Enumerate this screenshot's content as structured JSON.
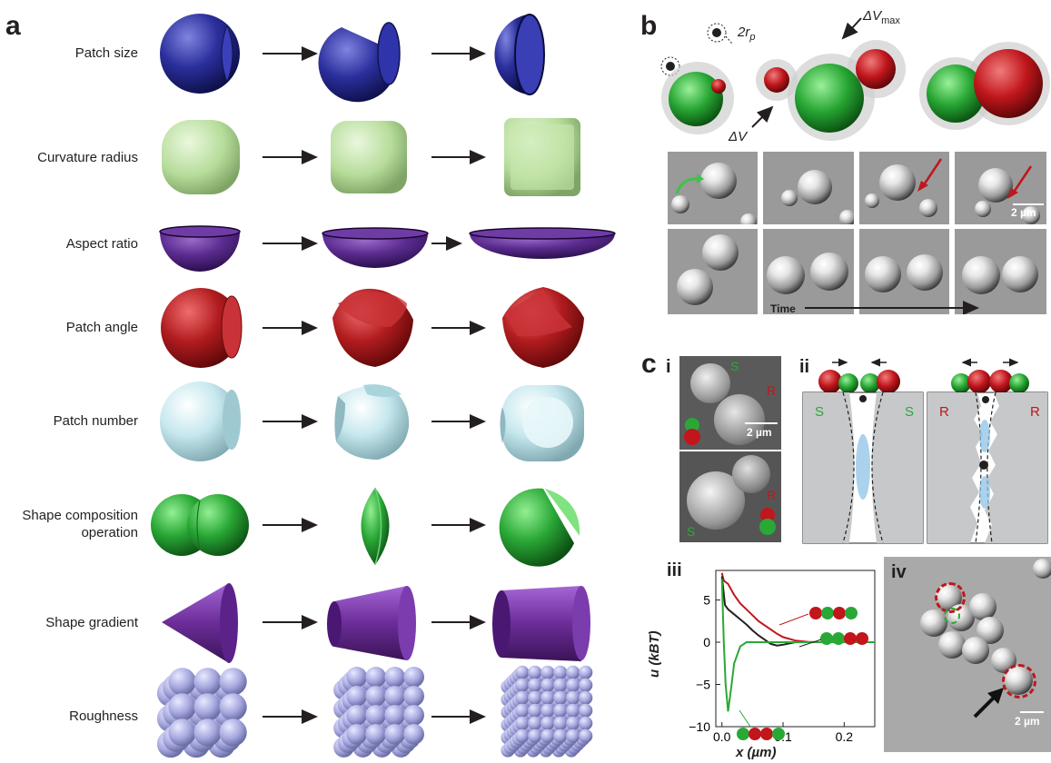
{
  "panel_a": {
    "letter": "a",
    "rows": [
      {
        "label": "Patch size"
      },
      {
        "label": "Curvature radius"
      },
      {
        "label": "Aspect ratio"
      },
      {
        "label": "Patch angle"
      },
      {
        "label": "Patch number"
      },
      {
        "label": "Shape composition operation"
      },
      {
        "label": "Shape gradient"
      },
      {
        "label": "Roughness"
      }
    ],
    "colors": {
      "patch_size": "#2b2f9c",
      "curvature": "#b6dc9a",
      "aspect": "#5a2b8f",
      "patch_angle": "#b11c1f",
      "patch_number": "#bfe3ea",
      "composition": "#2aa836",
      "gradient": "#6b2d98",
      "roughness": "#a6a8df"
    }
  },
  "panel_b": {
    "letter": "b",
    "label_2rp": "2r",
    "label_2rp_sub": "p",
    "label_dvmax": "ΔV",
    "label_dvmax_sub": "max",
    "label_dv": "ΔV",
    "scalebar": "2 µm",
    "time_label": "Time"
  },
  "panel_c": {
    "letter": "c",
    "sub_i": "i",
    "sub_ii": "ii",
    "sub_iii": "iii",
    "sub_iv": "iv",
    "sem_labels": {
      "S_top": "S",
      "R_top": "R",
      "R_bottom": "R",
      "S_bottom": "S"
    },
    "scalebar_i": "2 µm",
    "scalebar_iv": "2 µm",
    "surface_left": {
      "left": "S",
      "right": "S"
    },
    "surface_right": {
      "left": "R",
      "right": "R"
    }
  },
  "chart_data": {
    "type": "line",
    "xlabel": "x (µm)",
    "ylabel": "u (kBT)",
    "xlim": [
      -0.01,
      0.25
    ],
    "ylim": [
      -10,
      8.5
    ],
    "xticks": [
      "0.0",
      "0.1",
      "0.2"
    ],
    "yticks": [
      "5",
      "0",
      "−5",
      "−10"
    ],
    "series": [
      {
        "color": "#c0161c",
        "x": [
          0.0,
          0.003,
          0.01,
          0.02,
          0.03,
          0.04,
          0.05,
          0.06,
          0.07,
          0.08,
          0.09,
          0.1,
          0.12,
          0.14,
          0.16,
          0.25
        ],
        "y": [
          8.2,
          7.3,
          6.9,
          5.6,
          4.6,
          3.9,
          3.2,
          2.5,
          2.0,
          1.5,
          1.0,
          0.6,
          0.2,
          0.05,
          0.0,
          0.0
        ]
      },
      {
        "color": "#222222",
        "x": [
          0.0,
          0.005,
          0.01,
          0.02,
          0.03,
          0.04,
          0.05,
          0.06,
          0.07,
          0.08,
          0.09,
          0.1,
          0.12,
          0.25
        ],
        "y": [
          7.8,
          4.4,
          3.9,
          3.3,
          2.7,
          2.1,
          1.4,
          0.8,
          0.3,
          -0.2,
          -0.4,
          -0.3,
          0.0,
          0.0
        ]
      },
      {
        "color": "#2aa836",
        "x": [
          0.0,
          0.003,
          0.006,
          0.01,
          0.015,
          0.02,
          0.03,
          0.04,
          0.25
        ],
        "y": [
          7.5,
          0.0,
          -5.0,
          -8.2,
          -5.5,
          -2.5,
          -0.5,
          0.0,
          0.0
        ]
      }
    ]
  }
}
